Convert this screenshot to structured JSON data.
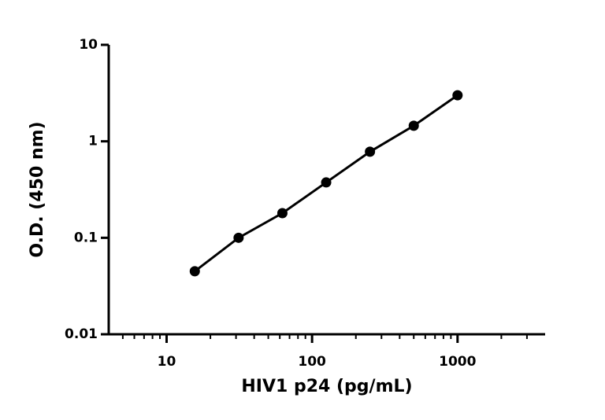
{
  "chart_data": {
    "type": "scatter",
    "x_label": "HIV1 p24 (pg/mL)",
    "y_label": "O.D. (450 nm)",
    "x_scale": "log",
    "y_scale": "log",
    "xlim": [
      4,
      4000
    ],
    "ylim": [
      0.01,
      10
    ],
    "xticks": [
      10,
      100,
      1000
    ],
    "xminorticks": [
      5,
      6,
      7,
      8,
      9,
      20,
      30,
      40,
      50,
      60,
      70,
      80,
      90,
      200,
      300,
      400,
      500,
      600,
      700,
      800,
      900,
      2000,
      3000
    ],
    "yticks": [
      0.01,
      0.1,
      1,
      10
    ],
    "series": [
      {
        "color": "#000000",
        "line": true,
        "x": [
          15.625,
          31.25,
          62.5,
          125,
          250,
          500,
          1000
        ],
        "values": [
          0.045,
          0.1,
          0.18,
          0.375,
          0.78,
          1.45,
          3.0
        ]
      }
    ]
  }
}
